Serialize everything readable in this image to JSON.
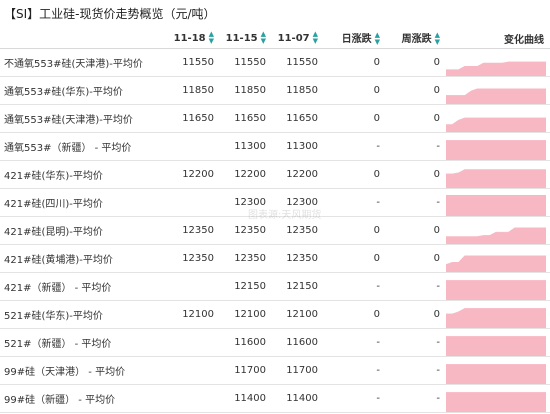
{
  "title": "【SI】工业硅-现货价走势概览（元/吨）",
  "watermark": "图表源:天风期货",
  "headers": {
    "name": "",
    "c1": "11-18",
    "c2": "11-15",
    "c3": "11-07",
    "c4": "日涨跌",
    "c5": "周涨跌",
    "c6": "变化曲线"
  },
  "sort_icon": "sort-arrows-icon",
  "spark_color": "#f7b8c4",
  "rows": [
    {
      "name": "不通氧553#硅(天津港)-平均价",
      "d1": "11550",
      "d2": "11550",
      "d3": "11550",
      "day": "0",
      "week": "0",
      "spark": [
        0.2,
        0.2,
        0.2,
        0.35,
        0.35,
        0.35,
        0.5,
        0.5,
        0.5,
        0.5,
        0.55,
        0.55,
        0.55,
        0.55,
        0.55,
        0.55,
        0.55
      ]
    },
    {
      "name": "通氧553#硅(华东)-平均价",
      "d1": "11850",
      "d2": "11850",
      "d3": "11850",
      "day": "0",
      "week": "0",
      "spark": [
        0.3,
        0.3,
        0.3,
        0.3,
        0.5,
        0.6,
        0.6,
        0.6,
        0.6,
        0.6,
        0.6,
        0.6,
        0.6,
        0.6,
        0.6,
        0.6,
        0.6
      ]
    },
    {
      "name": "通氧553#硅(天津港)-平均价",
      "d1": "11650",
      "d2": "11650",
      "d3": "11650",
      "day": "0",
      "week": "0",
      "spark": [
        0.25,
        0.25,
        0.45,
        0.55,
        0.55,
        0.55,
        0.55,
        0.55,
        0.55,
        0.55,
        0.55,
        0.55,
        0.55,
        0.55,
        0.55,
        0.55,
        0.55
      ]
    },
    {
      "name": "通氧553#（新疆） - 平均价",
      "d1": "",
      "d2": "11300",
      "d3": "11300",
      "day": "-",
      "week": "-",
      "spark": [
        0.8,
        0.8,
        0.8,
        0.8,
        0.8,
        0.8,
        0.8,
        0.8,
        0.8,
        0.8,
        0.8,
        0.8,
        0.8,
        0.8,
        0.8,
        0.8,
        0.8
      ]
    },
    {
      "name": "421#硅(华东)-平均价",
      "d1": "12200",
      "d2": "12200",
      "d3": "12200",
      "day": "0",
      "week": "0",
      "spark": [
        0.55,
        0.55,
        0.6,
        0.75,
        0.75,
        0.75,
        0.75,
        0.75,
        0.75,
        0.75,
        0.75,
        0.75,
        0.75,
        0.75,
        0.75,
        0.75,
        0.75
      ]
    },
    {
      "name": "421#硅(四川)-平均价",
      "d1": "",
      "d2": "12300",
      "d3": "12300",
      "day": "-",
      "week": "-",
      "spark": [
        0.85,
        0.85,
        0.85,
        0.85,
        0.85,
        0.85,
        0.85,
        0.85,
        0.85,
        0.85,
        0.85,
        0.85,
        0.85,
        0.85,
        0.85,
        0.85,
        0.85
      ]
    },
    {
      "name": "421#硅(昆明)-平均价",
      "d1": "12350",
      "d2": "12350",
      "d3": "12350",
      "day": "0",
      "week": "0",
      "spark": [
        0.25,
        0.25,
        0.25,
        0.25,
        0.25,
        0.25,
        0.3,
        0.3,
        0.45,
        0.45,
        0.45,
        0.65,
        0.65,
        0.65,
        0.65,
        0.65,
        0.65
      ]
    },
    {
      "name": "421#硅(黄埔港)-平均价",
      "d1": "12350",
      "d2": "12350",
      "d3": "12350",
      "day": "0",
      "week": "0",
      "spark": [
        0.25,
        0.35,
        0.35,
        0.65,
        0.65,
        0.65,
        0.65,
        0.65,
        0.65,
        0.65,
        0.65,
        0.65,
        0.65,
        0.65,
        0.65,
        0.65,
        0.65
      ]
    },
    {
      "name": "421#（新疆） - 平均价",
      "d1": "",
      "d2": "12150",
      "d3": "12150",
      "day": "-",
      "week": "-",
      "spark": [
        0.8,
        0.8,
        0.8,
        0.8,
        0.8,
        0.8,
        0.8,
        0.8,
        0.8,
        0.8,
        0.8,
        0.8,
        0.8,
        0.8,
        0.8,
        0.8,
        0.8
      ]
    },
    {
      "name": "521#硅(华东)-平均价",
      "d1": "12100",
      "d2": "12100",
      "d3": "12100",
      "day": "0",
      "week": "0",
      "spark": [
        0.55,
        0.55,
        0.65,
        0.8,
        0.8,
        0.8,
        0.8,
        0.8,
        0.8,
        0.8,
        0.8,
        0.8,
        0.8,
        0.8,
        0.8,
        0.8,
        0.8
      ]
    },
    {
      "name": "521#（新疆） - 平均价",
      "d1": "",
      "d2": "11600",
      "d3": "11600",
      "day": "-",
      "week": "-",
      "spark": [
        0.8,
        0.8,
        0.8,
        0.8,
        0.8,
        0.8,
        0.8,
        0.8,
        0.8,
        0.8,
        0.8,
        0.8,
        0.8,
        0.8,
        0.8,
        0.8,
        0.8
      ]
    },
    {
      "name": "99#硅（天津港） - 平均价",
      "d1": "",
      "d2": "11700",
      "d3": "11700",
      "day": "-",
      "week": "-",
      "spark": [
        0.8,
        0.8,
        0.8,
        0.8,
        0.8,
        0.8,
        0.8,
        0.8,
        0.8,
        0.8,
        0.8,
        0.8,
        0.8,
        0.8,
        0.8,
        0.8,
        0.8
      ]
    },
    {
      "name": "99#硅（新疆） - 平均价",
      "d1": "",
      "d2": "11400",
      "d3": "11400",
      "day": "-",
      "week": "-",
      "spark": [
        0.8,
        0.8,
        0.8,
        0.8,
        0.8,
        0.8,
        0.8,
        0.8,
        0.8,
        0.8,
        0.8,
        0.8,
        0.8,
        0.8,
        0.8,
        0.8,
        0.8
      ]
    }
  ]
}
